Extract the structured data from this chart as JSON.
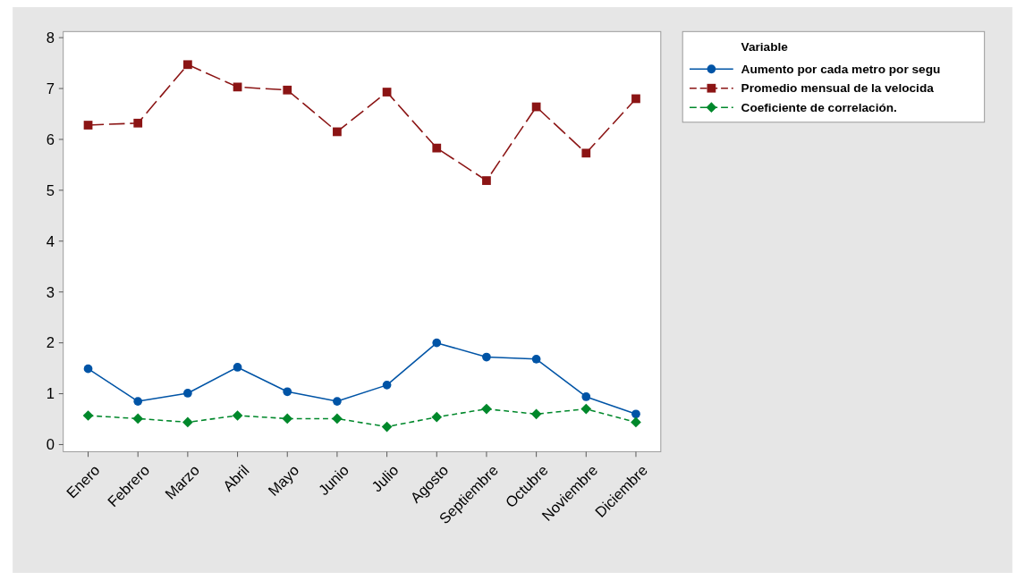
{
  "chart_data": {
    "type": "line",
    "legend_title": "Variable",
    "legend": "right",
    "grid": false,
    "categories": [
      "Enero",
      "Febrero",
      "Marzo",
      "Abril",
      "Mayo",
      "Junio",
      "Julio",
      "Agosto",
      "Septiembre",
      "Octubre",
      "Noviembre",
      "Diciembre"
    ],
    "ylim": [
      -0.14,
      8.12
    ],
    "yticks": [
      0,
      1,
      2,
      3,
      4,
      5,
      6,
      7,
      8
    ],
    "series": [
      {
        "name": "Aumento por cada metro por segu",
        "color": "#0054a6",
        "marker": "circle",
        "line_style": "solid",
        "values": [
          1.49,
          0.85,
          1.01,
          1.52,
          1.04,
          0.85,
          1.17,
          2.0,
          1.72,
          1.68,
          0.94,
          0.6
        ]
      },
      {
        "name": "Promedio mensual de la velocida",
        "color": "#8b1414",
        "marker": "square",
        "line_style": "dashed",
        "values": [
          6.28,
          6.32,
          7.47,
          7.03,
          6.97,
          6.15,
          6.93,
          5.83,
          5.19,
          6.64,
          5.73,
          6.8
        ]
      },
      {
        "name": "Coeficiente de correlación.",
        "color": "#00882b",
        "marker": "diamond",
        "line_style": "dotted",
        "values": [
          0.57,
          0.51,
          0.44,
          0.57,
          0.51,
          0.51,
          0.35,
          0.54,
          0.7,
          0.6,
          0.7,
          0.44
        ]
      }
    ]
  }
}
